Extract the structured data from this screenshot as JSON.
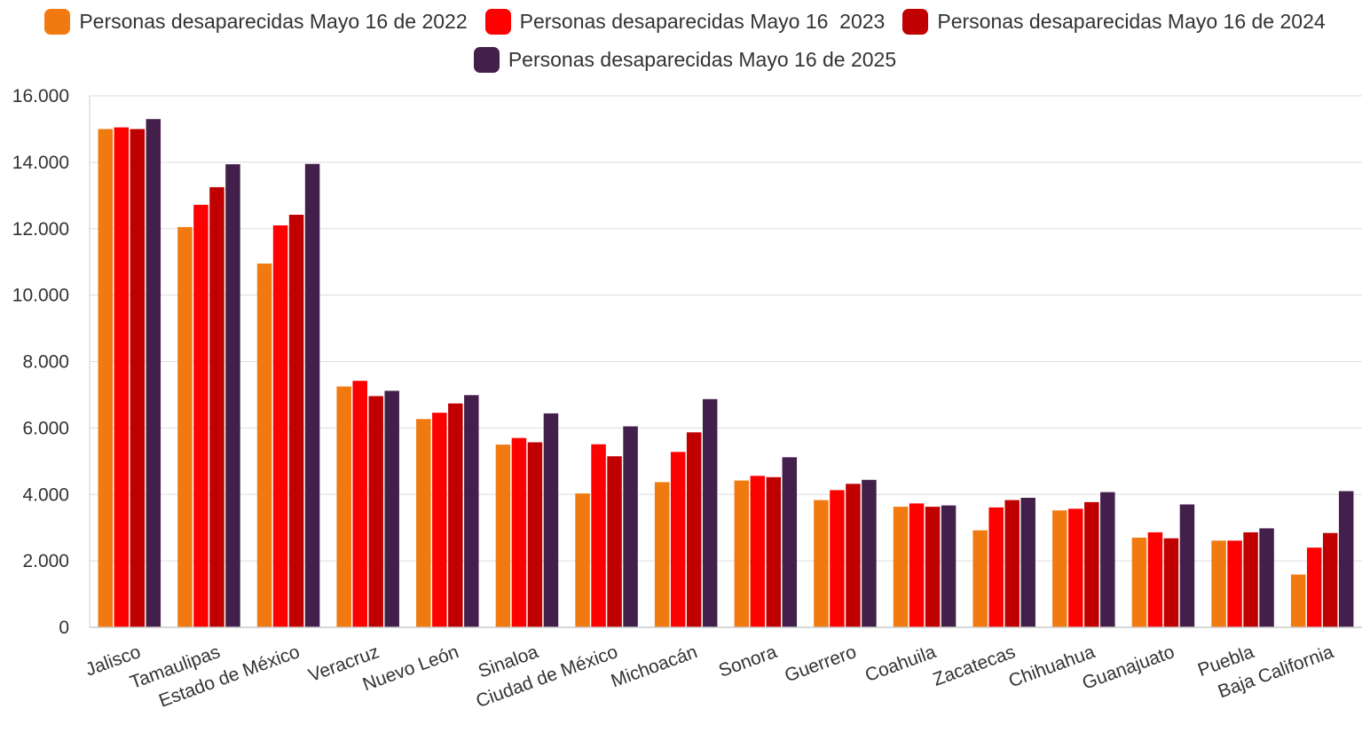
{
  "chart_data": {
    "type": "bar",
    "title": "",
    "xlabel": "",
    "ylabel": "",
    "ylim": [
      0,
      16000
    ],
    "yticks": [
      0,
      2000,
      4000,
      6000,
      8000,
      10000,
      12000,
      14000,
      16000
    ],
    "ytick_labels": [
      "0",
      "2.000",
      "4.000",
      "6.000",
      "8.000",
      "10.000",
      "12.000",
      "14.000",
      "16.000"
    ],
    "grid": true,
    "legend_position": "top-center",
    "categories": [
      "Jalisco",
      "Tamaulipas",
      "Estado de México",
      "Veracruz",
      "Nuevo León",
      "Sinaloa",
      "Ciudad de México",
      "Michoacán",
      "Sonora",
      "Guerrero",
      "Coahuila",
      "Zacatecas",
      "Chihuahua",
      "Guanajuato",
      "Puebla",
      "Baja California"
    ],
    "series": [
      {
        "name": "Personas desaparecidas Mayo 16 de 2022",
        "color": "#F07A10",
        "values": [
          15000,
          12050,
          10950,
          7250,
          6270,
          5500,
          4030,
          4370,
          4420,
          3830,
          3630,
          2920,
          3520,
          2700,
          2610,
          1590
        ]
      },
      {
        "name": "Personas desaparecidas Mayo 16  2023",
        "color": "#FF0000",
        "values": [
          15050,
          12720,
          12100,
          7420,
          6460,
          5700,
          5510,
          5280,
          4560,
          4130,
          3730,
          3610,
          3570,
          2860,
          2610,
          2400
        ]
      },
      {
        "name": "Personas desaparecidas Mayo 16 de 2024",
        "color": "#C00000",
        "values": [
          15000,
          13250,
          12420,
          6960,
          6740,
          5570,
          5150,
          5870,
          4520,
          4320,
          3630,
          3830,
          3770,
          2680,
          2860,
          2840
        ]
      },
      {
        "name": "Personas desaparecidas Mayo 16 de 2025",
        "color": "#43204B",
        "values": [
          15300,
          13940,
          13950,
          7120,
          6990,
          6440,
          6050,
          6870,
          5120,
          4440,
          3670,
          3900,
          4070,
          3700,
          2980,
          4100
        ]
      }
    ]
  }
}
